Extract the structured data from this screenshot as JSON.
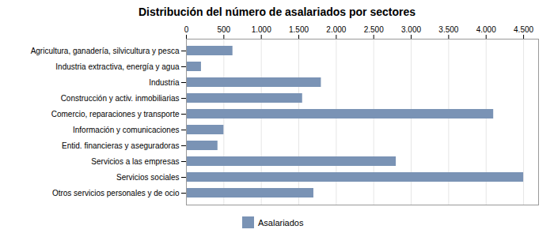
{
  "chart_data": {
    "type": "bar",
    "orientation": "horizontal",
    "title": "Distribución del número de asalariados por sectores",
    "categories": [
      "Agricultura, ganadería, silvicultura y pesca",
      "Industria extractiva, energía y agua",
      "Industria",
      "Construcción y activ. inmobiliarias",
      "Comercio, reparaciones y transporte",
      "Información y comunicaciones",
      "Entid. financieras y aseguradoras",
      "Servicios a las empresas",
      "Servicios sociales",
      "Otros servicios personales y de ocio"
    ],
    "series": [
      {
        "name": "Asalariados",
        "color": "#7a93b5",
        "values": [
          620,
          200,
          1800,
          1550,
          4100,
          500,
          420,
          2800,
          4500,
          1700
        ]
      }
    ],
    "xlim": [
      0,
      4700
    ],
    "xticks": [
      0,
      500,
      {
        "value": 1000,
        "label": "1.000"
      },
      {
        "value": 1500,
        "label": "1.500"
      },
      {
        "value": 2000,
        "label": "2.000"
      },
      {
        "value": 2500,
        "label": "2.500"
      },
      {
        "value": 3000,
        "label": "3.000"
      },
      {
        "value": 3500,
        "label": "3.500"
      },
      {
        "value": 4000,
        "label": "4.000"
      },
      {
        "value": 4500,
        "label": "4.500"
      }
    ],
    "grid": true,
    "legend": "bottom"
  }
}
